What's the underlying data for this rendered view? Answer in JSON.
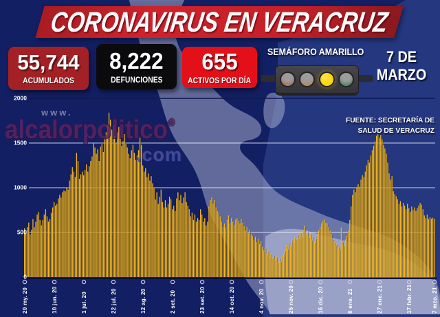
{
  "title": {
    "banner": "CORONAVIRUS EN VERACRUZ"
  },
  "stats": [
    {
      "value": "55,744",
      "label": "ACUMULADOS"
    },
    {
      "value": "8,222",
      "label": "DEFUNCIONES"
    },
    {
      "value": "655",
      "label": "ACTIVOS POR DÍA"
    }
  ],
  "semaforo": {
    "label": "SEMÁFORO AMARILLO",
    "active": "amarillo",
    "lights": [
      {
        "name": "rojo",
        "state": "off"
      },
      {
        "name": "naranja",
        "state": "off"
      },
      {
        "name": "amarillo",
        "state": "on"
      },
      {
        "name": "verde",
        "state": "off"
      }
    ]
  },
  "date": {
    "line1": "7 DE",
    "line2": "MARZO"
  },
  "source": {
    "line1": "FUENTE: SECRETARÍA DE",
    "line2": "SALUD DE VERACRUZ"
  },
  "watermark": {
    "prefix": "www.",
    "name": "alcalorpolitico",
    "registered": "®",
    "suffix": ".com"
  },
  "colors": {
    "background_navy": "#131f63",
    "background_panel_right": "#24377f",
    "map_silhouette": "rgba(175,182,210,0.5)",
    "bar_yellow": "#f6b51b",
    "banner_red": "#c62028",
    "box_dark_red": "#a32125",
    "box_black": "#0b0b0d",
    "box_bright_red": "#e31019",
    "traffic_yellow": "#ffd400",
    "watermark_purple": "#5b2563",
    "watermark_blue": "#3d59b0"
  },
  "chart_data": {
    "type": "bar",
    "title": "",
    "xlabel": "",
    "ylabel": "",
    "series_name": "casos activos por día",
    "ylim": [
      0,
      2000
    ],
    "y_ticks": [
      0,
      500,
      1000,
      1500,
      2000
    ],
    "grid": true,
    "legend": false,
    "bar_color": "#f6b51b",
    "x_tick_labels": [
      "20 my. 20",
      "10 jun. 20",
      "1 jul. 20",
      "22 jul. 20",
      "12 ag. 20",
      "2 set. 20",
      "23 set. 20",
      "14 oct. 20",
      "4 nov. 20",
      "25 nov. 20",
      "16 dic. 20",
      "6 ene. 21",
      "27 ene. 21",
      "17 febr. 21",
      "7 mzo. 21"
    ],
    "x_tick_day_index": [
      0,
      21,
      42,
      63,
      84,
      105,
      126,
      147,
      168,
      189,
      210,
      231,
      252,
      273,
      291
    ],
    "date_range": {
      "start": "20 my. 20",
      "end": "7 mzo. 21"
    },
    "values": [
      545,
      500,
      560,
      610,
      480,
      530,
      650,
      560,
      620,
      700,
      730,
      640,
      580,
      640,
      700,
      760,
      680,
      620,
      650,
      720,
      780,
      840,
      800,
      820,
      880,
      920,
      890,
      950,
      970,
      960,
      1000,
      980,
      1080,
      1150,
      1230,
      1180,
      1120,
      1390,
      1300,
      1100,
      1150,
      1180,
      1140,
      1200,
      1260,
      1180,
      1240,
      1300,
      1350,
      1500,
      1450,
      1380,
      1430,
      1300,
      1460,
      1490,
      1400,
      1550,
      1620,
      1700,
      1840,
      1760,
      1650,
      1700,
      1580,
      1500,
      1620,
      1680,
      1550,
      1470,
      1520,
      1600,
      1490,
      1450,
      1380,
      1330,
      1420,
      1480,
      1390,
      1310,
      1360,
      1420,
      1560,
      1480,
      1250,
      1180,
      1220,
      1120,
      1160,
      1080,
      1130,
      1050,
      1000,
      870,
      950,
      820,
      900,
      980,
      840,
      780,
      860,
      780,
      820,
      900,
      870,
      760,
      800,
      740,
      880,
      950,
      860,
      920,
      830,
      890,
      950,
      840,
      800,
      760,
      680,
      720,
      640,
      700,
      620,
      660,
      640,
      760,
      700,
      620,
      660,
      580,
      620,
      790,
      860,
      890,
      820,
      860,
      780,
      740,
      720,
      680,
      620,
      560,
      600,
      550,
      640,
      690,
      600,
      660,
      620,
      580,
      640,
      660,
      630,
      600,
      650,
      610,
      570,
      520,
      560,
      490,
      530,
      480,
      460,
      420,
      450,
      390,
      430,
      370,
      400,
      340,
      300,
      330,
      260,
      300,
      230,
      270,
      220,
      250,
      200,
      230,
      170,
      210,
      180,
      240,
      260,
      300,
      350,
      320,
      390,
      360,
      420,
      400,
      450,
      430,
      480,
      440,
      500,
      460,
      530,
      575,
      490,
      520,
      450,
      490,
      420,
      460,
      400,
      440,
      480,
      520,
      560,
      600,
      630,
      645,
      610,
      600,
      560,
      520,
      480,
      430,
      390,
      360,
      380,
      340,
      320,
      555,
      400,
      360,
      420,
      460,
      520,
      640,
      790,
      920,
      980,
      950,
      1000,
      1040,
      1010,
      1090,
      1140,
      1120,
      1180,
      1250,
      1310,
      1280,
      1360,
      1420,
      1470,
      1520,
      1580,
      1600,
      1560,
      1590,
      1540,
      1480,
      1440,
      1380,
      1280,
      1160,
      1090,
      1130,
      960,
      930,
      905,
      870,
      820,
      850,
      790,
      830,
      800,
      760,
      820,
      770,
      730,
      790,
      750,
      780,
      740,
      770,
      800,
      830,
      810,
      760,
      690,
      660,
      700,
      650,
      670,
      655,
      665,
      655
    ]
  }
}
